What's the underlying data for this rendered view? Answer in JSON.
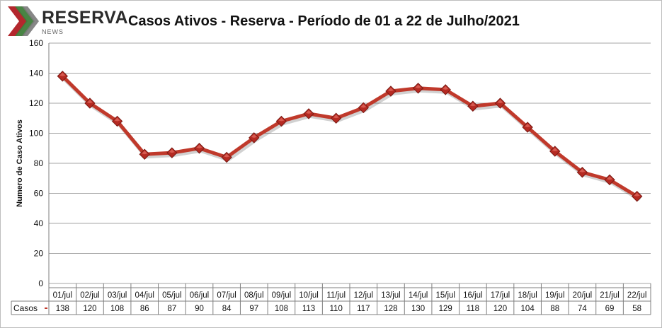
{
  "logo": {
    "name": "RESERVA",
    "sub": "NEWS",
    "colors": [
      "#b3272d",
      "#3e7d3a",
      "#7a7a7a"
    ]
  },
  "chart_data": {
    "type": "line",
    "title": "Casos Ativos - Reserva - Período de 01 a 22 de Julho/2021",
    "ylabel": "Numero de Caso Ativos",
    "xlabel": "",
    "ylim": [
      0,
      160
    ],
    "yticks": [
      0,
      20,
      40,
      60,
      80,
      100,
      120,
      140,
      160
    ],
    "grid": true,
    "categories": [
      "01/jul",
      "02/jul",
      "03/jul",
      "04/jul",
      "05/jul",
      "06/jul",
      "07/jul",
      "08/jul",
      "09/jul",
      "10/jul",
      "11/jul",
      "12/jul",
      "13/jul",
      "14/jul",
      "15/jul",
      "16/jul",
      "17/jul",
      "18/jul",
      "19/jul",
      "20/jul",
      "21/jul",
      "22/jul"
    ],
    "series": [
      {
        "name": "Casos",
        "color": "#c0392b",
        "values": [
          138,
          120,
          108,
          86,
          87,
          90,
          84,
          97,
          108,
          113,
          110,
          117,
          128,
          130,
          129,
          118,
          120,
          104,
          88,
          74,
          69,
          58
        ]
      }
    ],
    "data_table": true
  }
}
